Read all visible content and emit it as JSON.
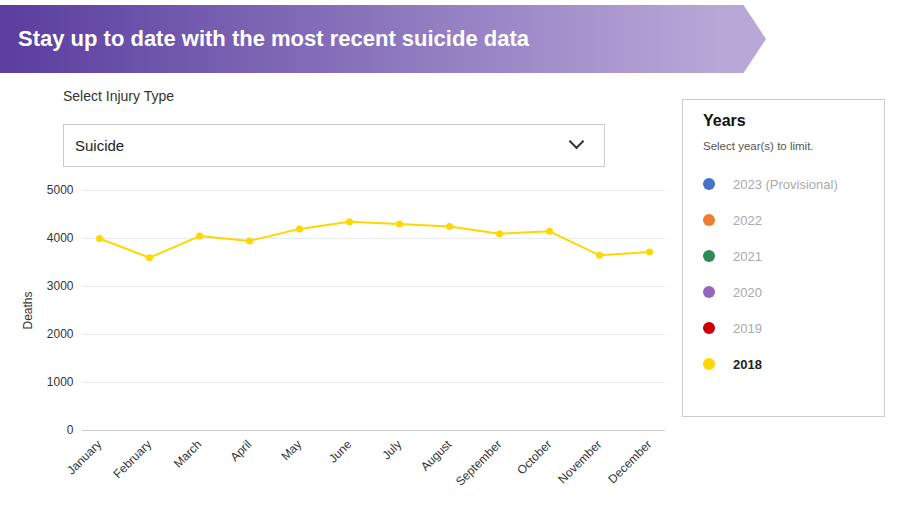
{
  "chart_data": {
    "type": "line",
    "title": "Stay up to date with the most recent suicide data",
    "dropdown_label": "Select Injury Type",
    "dropdown_value": "Suicide",
    "ylabel": "Deaths",
    "legend_title": "Years",
    "legend_subtitle": "Select year(s) to limit.",
    "categories": [
      "January",
      "February",
      "March",
      "April",
      "May",
      "June",
      "July",
      "August",
      "September",
      "October",
      "November",
      "December"
    ],
    "series": [
      {
        "name": "2023 (Provisional)",
        "color": "#4472C4",
        "values": [
          null,
          null,
          null,
          null,
          null,
          null,
          null,
          null,
          null,
          null,
          null,
          null
        ]
      },
      {
        "name": "2022",
        "color": "#ED7D31",
        "values": [
          null,
          null,
          null,
          null,
          null,
          null,
          null,
          null,
          null,
          null,
          null,
          null
        ]
      },
      {
        "name": "2021",
        "color": "#2E8B57",
        "values": [
          null,
          null,
          null,
          null,
          null,
          null,
          null,
          null,
          null,
          null,
          null,
          null
        ]
      },
      {
        "name": "2020",
        "color": "#9467bd",
        "values": [
          null,
          null,
          null,
          null,
          null,
          null,
          null,
          null,
          null,
          null,
          null,
          null
        ]
      },
      {
        "name": "2019",
        "color": "#CC0000",
        "values": [
          null,
          null,
          null,
          null,
          null,
          null,
          null,
          null,
          null,
          null,
          null,
          null
        ]
      },
      {
        "name": "2018",
        "color": "#FFD700",
        "values": [
          4000,
          3600,
          4050,
          3950,
          4200,
          4350,
          4300,
          4250,
          4100,
          4150,
          3650,
          3720
        ]
      }
    ],
    "ylim": [
      0,
      5000
    ],
    "yticks": [
      0,
      1000,
      2000,
      3000,
      4000,
      5000
    ],
    "grid": true,
    "marker": "o"
  }
}
